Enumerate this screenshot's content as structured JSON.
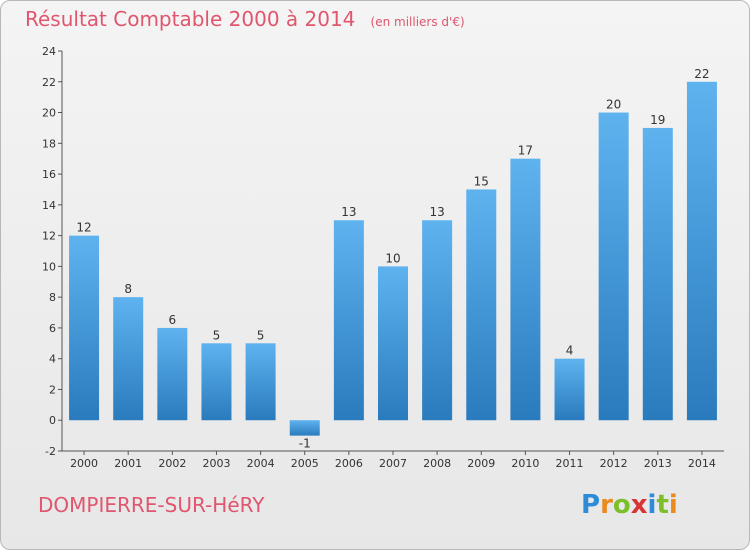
{
  "title": "Résultat Comptable 2000 à 2014",
  "subtitle": "(en milliers d'€)",
  "commune": "DOMPIERRE-SUR-HéRY",
  "logo": {
    "letters": [
      "P",
      "r",
      "o",
      "x",
      "i",
      "t",
      "i"
    ],
    "colors": [
      "#2d8bd8",
      "#e98b1f",
      "#7bbf2a",
      "#d93434",
      "#2d8bd8",
      "#7bbf2a",
      "#e98b1f"
    ]
  },
  "colors": {
    "bar_light": "#5eb3ef",
    "bar_dark": "#2a7bbd",
    "axis": "#555555",
    "grid_tick": "#666666",
    "text": "#333333"
  },
  "chart_data": {
    "type": "bar",
    "categories": [
      "2000",
      "2001",
      "2002",
      "2003",
      "2004",
      "2005",
      "2006",
      "2007",
      "2008",
      "2009",
      "2010",
      "2011",
      "2012",
      "2013",
      "2014"
    ],
    "values": [
      12,
      8,
      6,
      5,
      5,
      -1,
      13,
      10,
      13,
      15,
      17,
      4,
      20,
      19,
      22
    ],
    "yticks": [
      -2,
      0,
      2,
      4,
      6,
      8,
      10,
      12,
      14,
      16,
      18,
      20,
      22,
      24
    ],
    "ylim": [
      -2,
      24
    ],
    "grid": false,
    "data_labels": true
  }
}
